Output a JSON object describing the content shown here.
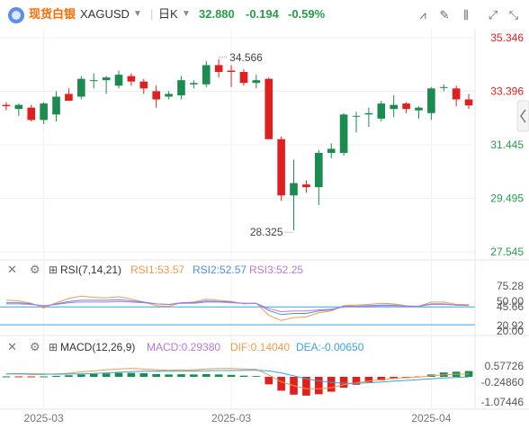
{
  "header": {
    "name": "现货白银",
    "symbol": "XAGUSD",
    "period": "日K",
    "price": "32.880",
    "change": "-0.194",
    "change_pct": "-0.59%",
    "icons": [
      "indicator-icon",
      "draw-icon",
      "candle-type-icon",
      "fullscreen-icon"
    ]
  },
  "colors": {
    "up": "#1a8c50",
    "down": "#e0201e",
    "price": "#2a9d4a",
    "neg": "#e0201e",
    "rsi1": "#f39a4b",
    "rsi2": "#4a90e2",
    "rsi3": "#b57bd8",
    "macd": "#b57bd8",
    "dif": "#f39a4b",
    "dea": "#3aa5d8",
    "ref": "#3aa5d8"
  },
  "chart_data": [
    {
      "type": "candlestick",
      "name": "main",
      "y_ticks": [
        "35.346",
        "33.396",
        "31.445",
        "29.495",
        "27.545"
      ],
      "y_tick_colors": [
        "#e0201e",
        "#e0201e",
        "#2a9d4a",
        "#2a9d4a",
        "#2a9d4a"
      ],
      "ylim": [
        27.545,
        35.346
      ],
      "annotations": [
        {
          "text": "34.566",
          "index": 17,
          "value": 34.566
        },
        {
          "text": "28.325",
          "index": 23,
          "value": 28.325
        }
      ],
      "x_labels": [
        {
          "text": "2025-03",
          "index": 3
        },
        {
          "text": "2025-03",
          "index": 18
        },
        {
          "text": "2025-04",
          "index": 34
        }
      ],
      "candles": [
        {
          "o": 32.9,
          "h": 33.0,
          "l": 32.7,
          "c": 32.85
        },
        {
          "o": 32.75,
          "h": 32.95,
          "l": 32.5,
          "c": 32.9
        },
        {
          "o": 32.8,
          "h": 32.9,
          "l": 32.3,
          "c": 32.35
        },
        {
          "o": 32.35,
          "h": 33.0,
          "l": 32.2,
          "c": 32.95
        },
        {
          "o": 32.55,
          "h": 33.4,
          "l": 32.3,
          "c": 33.2
        },
        {
          "o": 33.3,
          "h": 33.5,
          "l": 33.05,
          "c": 33.05
        },
        {
          "o": 33.2,
          "h": 33.95,
          "l": 33.1,
          "c": 33.85
        },
        {
          "o": 33.8,
          "h": 34.05,
          "l": 33.5,
          "c": 33.8
        },
        {
          "o": 33.8,
          "h": 33.95,
          "l": 33.3,
          "c": 33.9
        },
        {
          "o": 33.6,
          "h": 34.15,
          "l": 33.5,
          "c": 34.0
        },
        {
          "o": 33.95,
          "h": 34.05,
          "l": 33.6,
          "c": 33.75
        },
        {
          "o": 33.75,
          "h": 33.85,
          "l": 33.3,
          "c": 33.5
        },
        {
          "o": 33.4,
          "h": 33.6,
          "l": 32.8,
          "c": 33.1
        },
        {
          "o": 33.2,
          "h": 33.4,
          "l": 33.1,
          "c": 33.3
        },
        {
          "o": 33.25,
          "h": 33.95,
          "l": 33.1,
          "c": 33.8
        },
        {
          "o": 33.65,
          "h": 33.8,
          "l": 33.5,
          "c": 33.7
        },
        {
          "o": 33.65,
          "h": 34.5,
          "l": 33.55,
          "c": 34.35
        },
        {
          "o": 34.35,
          "h": 34.566,
          "l": 33.9,
          "c": 34.1
        },
        {
          "o": 34.15,
          "h": 34.35,
          "l": 33.55,
          "c": 34.1
        },
        {
          "o": 34.1,
          "h": 34.2,
          "l": 33.6,
          "c": 33.7
        },
        {
          "o": 33.7,
          "h": 34.0,
          "l": 33.5,
          "c": 33.8
        },
        {
          "o": 33.85,
          "h": 33.9,
          "l": 31.65,
          "c": 31.65
        },
        {
          "o": 31.65,
          "h": 31.75,
          "l": 29.4,
          "c": 29.6
        },
        {
          "o": 29.6,
          "h": 30.9,
          "l": 28.325,
          "c": 30.05
        },
        {
          "o": 30.0,
          "h": 30.15,
          "l": 29.7,
          "c": 29.9
        },
        {
          "o": 29.9,
          "h": 31.25,
          "l": 29.25,
          "c": 31.15
        },
        {
          "o": 31.15,
          "h": 31.5,
          "l": 30.95,
          "c": 31.3
        },
        {
          "o": 31.15,
          "h": 32.6,
          "l": 31.05,
          "c": 32.55
        },
        {
          "o": 32.5,
          "h": 32.65,
          "l": 31.9,
          "c": 32.5
        },
        {
          "o": 32.55,
          "h": 32.8,
          "l": 32.1,
          "c": 32.6
        },
        {
          "o": 32.4,
          "h": 33.05,
          "l": 32.3,
          "c": 32.95
        },
        {
          "o": 32.75,
          "h": 33.25,
          "l": 32.45,
          "c": 32.9
        },
        {
          "o": 32.95,
          "h": 33.0,
          "l": 32.6,
          "c": 32.75
        },
        {
          "o": 32.7,
          "h": 32.85,
          "l": 32.4,
          "c": 32.8
        },
        {
          "o": 32.6,
          "h": 33.55,
          "l": 32.35,
          "c": 33.5
        },
        {
          "o": 33.55,
          "h": 33.65,
          "l": 33.4,
          "c": 33.55
        },
        {
          "o": 33.5,
          "h": 33.6,
          "l": 32.85,
          "c": 33.1
        },
        {
          "o": 33.1,
          "h": 33.3,
          "l": 32.75,
          "c": 32.88
        }
      ]
    },
    {
      "type": "line",
      "name": "rsi",
      "title": "RSI(7,14,21)",
      "legend": [
        {
          "name": "RSI1",
          "value": "53.57"
        },
        {
          "name": "RSI2",
          "value": "52.57"
        },
        {
          "name": "RSI3",
          "value": "52.25"
        }
      ],
      "y_ticks": [
        "75.28",
        "50.00",
        "45.66",
        "20.92",
        "20.00"
      ],
      "ylim": [
        5,
        85
      ],
      "ref_lines": [
        50,
        20
      ],
      "series": [
        {
          "name": "RSI1",
          "values": [
            61,
            60,
            56,
            48,
            57,
            64,
            68,
            66,
            65,
            67,
            63,
            58,
            52,
            51,
            57,
            58,
            63,
            61,
            59,
            55,
            56,
            36,
            27,
            32,
            33,
            40,
            43,
            52,
            53,
            54,
            56,
            55,
            52,
            51,
            58,
            58,
            54,
            53.57
          ]
        },
        {
          "name": "RSI2",
          "values": [
            57,
            57,
            55,
            51,
            55,
            59,
            61,
            61,
            61,
            62,
            60,
            58,
            55,
            54,
            57,
            57,
            60,
            59,
            58,
            56,
            56,
            44,
            37,
            39,
            39,
            43,
            45,
            51,
            51,
            52,
            53,
            53,
            51,
            51,
            55,
            55,
            53,
            52.57
          ]
        },
        {
          "name": "RSI3",
          "values": [
            55,
            55,
            54,
            52,
            54,
            57,
            58,
            58,
            58,
            59,
            58,
            57,
            55,
            54,
            56,
            56,
            58,
            58,
            57,
            56,
            56,
            47,
            42,
            43,
            43,
            45,
            46,
            50,
            51,
            51,
            52,
            52,
            51,
            51,
            54,
            54,
            53,
            52.25
          ]
        }
      ]
    },
    {
      "type": "bar",
      "name": "macd",
      "title": "MACD(12,26,9)",
      "legend": [
        {
          "name": "MACD",
          "value": "0.29380"
        },
        {
          "name": "DIF",
          "value": "0.14040"
        },
        {
          "name": "DEA",
          "value": "-0.00650"
        }
      ],
      "y_ticks": [
        "0.57726",
        "-0.24860",
        "-1.07446"
      ],
      "ylim": [
        -1.5,
        1.0
      ],
      "series": [
        {
          "name": "MACD",
          "values": [
            0.0,
            -0.02,
            -0.03,
            0.0,
            0.05,
            0.08,
            0.12,
            0.15,
            0.17,
            0.2,
            0.2,
            0.18,
            0.14,
            0.12,
            0.13,
            0.12,
            0.14,
            0.12,
            0.1,
            0.06,
            0.04,
            -0.38,
            -0.7,
            -0.9,
            -0.95,
            -0.88,
            -0.75,
            -0.55,
            -0.4,
            -0.28,
            -0.18,
            -0.1,
            -0.06,
            -0.02,
            0.12,
            0.22,
            0.26,
            0.2938
          ]
        },
        {
          "name": "DIF",
          "values": [
            0.15,
            0.15,
            0.12,
            0.12,
            0.15,
            0.18,
            0.25,
            0.3,
            0.35,
            0.4,
            0.42,
            0.4,
            0.36,
            0.33,
            0.35,
            0.36,
            0.4,
            0.42,
            0.42,
            0.4,
            0.38,
            0.1,
            -0.25,
            -0.45,
            -0.6,
            -0.6,
            -0.55,
            -0.4,
            -0.3,
            -0.22,
            -0.15,
            -0.08,
            -0.04,
            -0.01,
            0.06,
            0.1,
            0.13,
            0.1404
          ]
        },
        {
          "name": "DEA",
          "values": [
            0.15,
            0.16,
            0.15,
            0.14,
            0.13,
            0.14,
            0.15,
            0.17,
            0.2,
            0.23,
            0.26,
            0.28,
            0.29,
            0.28,
            0.29,
            0.3,
            0.31,
            0.32,
            0.32,
            0.33,
            0.33,
            0.3,
            0.2,
            0.05,
            -0.1,
            -0.2,
            -0.28,
            -0.32,
            -0.33,
            -0.3,
            -0.26,
            -0.22,
            -0.18,
            -0.14,
            -0.1,
            -0.06,
            -0.03,
            -0.0065
          ]
        }
      ]
    }
  ]
}
